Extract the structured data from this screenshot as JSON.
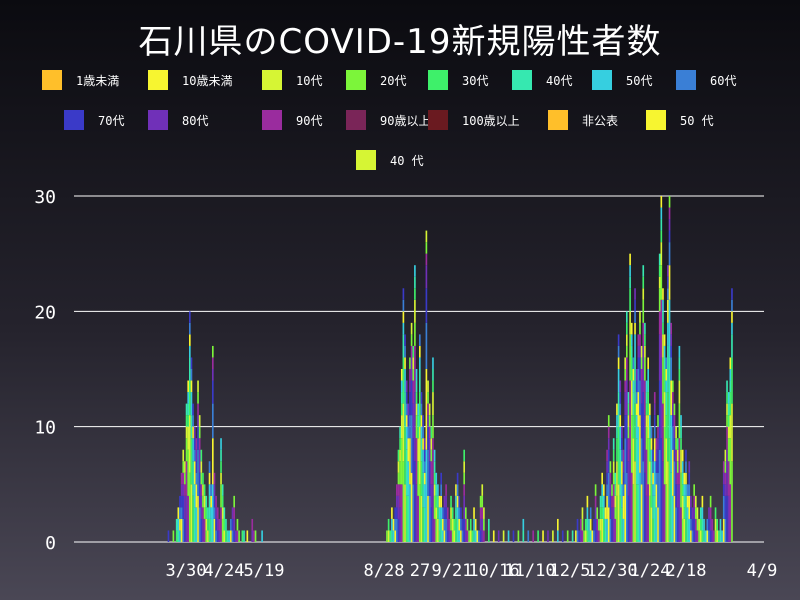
{
  "chart_data": {
    "type": "bar",
    "stacked": true,
    "title": "石川県のCOVID-19新規陽性者数",
    "ylim": [
      0,
      30
    ],
    "yticks": [
      0,
      10,
      20,
      30
    ],
    "grid": true,
    "legend_position": "top",
    "x_tick_labels": [
      "3/30",
      "4/24",
      "5/19",
      "8/28",
      "27",
      "9/21",
      "10/16",
      "11/10",
      "12/5",
      "12/30",
      "1/24",
      "2/18",
      "4/9"
    ],
    "series": [
      {
        "name": "1歳未満",
        "color": "#ffbf2a"
      },
      {
        "name": "10歳未満",
        "color": "#f7f530"
      },
      {
        "name": "10代",
        "color": "#d6f534"
      },
      {
        "name": "20代",
        "color": "#7cf53a"
      },
      {
        "name": "30代",
        "color": "#3ef06a"
      },
      {
        "name": "40代",
        "color": "#36e8b0"
      },
      {
        "name": "50代",
        "color": "#36cfe0"
      },
      {
        "name": "60代",
        "color": "#3a7fd6"
      },
      {
        "name": "70代",
        "color": "#3a3ac8"
      },
      {
        "name": "80代",
        "color": "#7030b8"
      },
      {
        "name": "90代",
        "color": "#9a2c9e"
      },
      {
        "name": "90歳以上",
        "color": "#7a2558"
      },
      {
        "name": "100歳以上",
        "color": "#6a1a20"
      },
      {
        "name": "非公表",
        "color": "#ffbf2a"
      },
      {
        "name": "50 代",
        "color": "#f7f530"
      },
      {
        "name": "40 代",
        "color": "#d6f534"
      }
    ],
    "daily_totals_approx": {
      "wave1": [
        0,
        1,
        0,
        0,
        1,
        0,
        2,
        3,
        4,
        6,
        8,
        7,
        12,
        14,
        20,
        16,
        12,
        10,
        9,
        14,
        11,
        8,
        6,
        5,
        4,
        3,
        7,
        5,
        17,
        6,
        4,
        3,
        2,
        9,
        5,
        3,
        2,
        1,
        1,
        2,
        3,
        4,
        1,
        2,
        1,
        0,
        1,
        1,
        0,
        1,
        0,
        0,
        2,
        1,
        1,
        0,
        0,
        0,
        1,
        0
      ],
      "wave2": [
        1,
        2,
        1,
        3,
        2,
        3,
        5,
        8,
        10,
        15,
        22,
        18,
        14,
        12,
        16,
        19,
        17,
        24,
        15,
        12,
        18,
        13,
        11,
        9,
        27,
        14,
        12,
        10,
        16,
        8,
        6,
        5,
        4,
        6,
        3,
        4,
        5,
        3,
        2,
        4,
        3,
        2,
        5,
        6,
        4,
        3,
        2,
        8,
        3,
        2,
        1,
        2,
        1,
        3,
        2,
        1,
        1,
        4,
        5,
        3
      ],
      "wave3": [
        1,
        2,
        1,
        2,
        3,
        1,
        2,
        4,
        2,
        3,
        1,
        2,
        5,
        3,
        2,
        4,
        6,
        5,
        3,
        8,
        11,
        7,
        5,
        9,
        6,
        12,
        18,
        14,
        10,
        8,
        16,
        20,
        13,
        25,
        19,
        16,
        22,
        15,
        18,
        20,
        17,
        24,
        19,
        14,
        16,
        12,
        10,
        8,
        13,
        9,
        11,
        25,
        30,
        22,
        18,
        16,
        24,
        30,
        19,
        14,
        12,
        10,
        9,
        17,
        11,
        8,
        6,
        8,
        5,
        7,
        4,
        3,
        5,
        4,
        3,
        2,
        3,
        4,
        2,
        1,
        2,
        3,
        4,
        2,
        1,
        3,
        2,
        1,
        2,
        1,
        7,
        8,
        14,
        13,
        16,
        22
      ]
    }
  }
}
